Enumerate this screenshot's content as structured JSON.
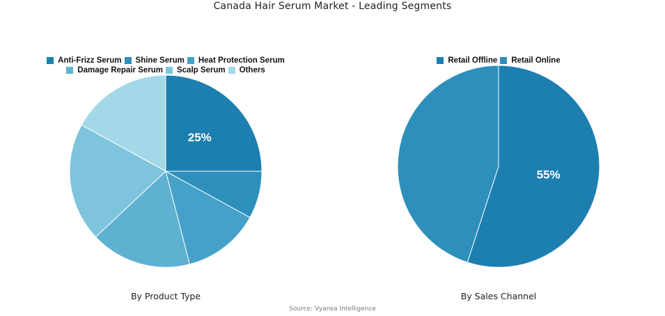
{
  "title": "Canada Hair Serum Market - Leading Segments",
  "source": "Source: Vyansa Intelligence",
  "colors": {
    "c1": "#1c7fb0",
    "c2": "#2e8fbb",
    "c3": "#45a1c8",
    "c4": "#5fb1d2",
    "c5": "#7ec4dc",
    "c6": "#a3d8e8"
  },
  "chart_data": [
    {
      "type": "pie",
      "label": "By Product Type",
      "categories": [
        "Anti-Frizz Serum",
        "Shine Serum",
        "Heat Protection Serum",
        "Damage Repair Serum",
        "Scalp Serum",
        "Others"
      ],
      "values": [
        25,
        8,
        13,
        17,
        20,
        17
      ],
      "data_labels": [
        "25%",
        "",
        "",
        "",
        "",
        ""
      ],
      "colors": [
        "#1c7fb0",
        "#2e8fbb",
        "#45a1c8",
        "#5fb1d2",
        "#7ec4dc",
        "#a3d8e8"
      ],
      "legend_placement": "top"
    },
    {
      "type": "pie",
      "label": "By Sales Channel",
      "categories": [
        "Retail Offline",
        "Retail Online"
      ],
      "values": [
        55,
        45
      ],
      "data_labels": [
        "55%",
        ""
      ],
      "colors": [
        "#1c7fb0",
        "#2e8fbb"
      ],
      "legend_placement": "top"
    }
  ]
}
